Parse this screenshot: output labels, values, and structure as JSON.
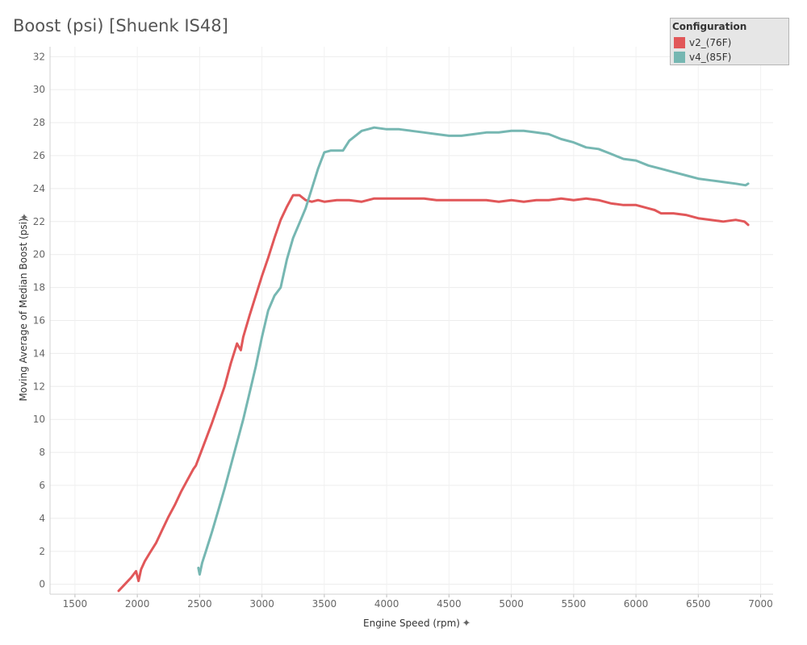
{
  "chart_data": {
    "type": "line",
    "title": "Boost (psi) [Shuenk IS48]",
    "xlabel": "Engine Speed (rpm)",
    "ylabel": "Moving Average of Median Boost (psi)",
    "xlim": [
      1300,
      7100
    ],
    "ylim": [
      -0.6,
      32.6
    ],
    "x_ticks": [
      1500,
      2000,
      2500,
      3000,
      3500,
      4000,
      4500,
      5000,
      5500,
      6000,
      6500,
      7000
    ],
    "y_ticks": [
      0,
      2,
      4,
      6,
      8,
      10,
      12,
      14,
      16,
      18,
      20,
      22,
      24,
      26,
      28,
      30,
      32
    ],
    "grid": true,
    "legend": {
      "title": "Configuration",
      "position": "top-right"
    },
    "series": [
      {
        "name": "v2_(76F)",
        "color": "#e15759",
        "x": [
          1850,
          1900,
          1950,
          1990,
          2010,
          2030,
          2060,
          2100,
          2150,
          2200,
          2250,
          2300,
          2350,
          2400,
          2450,
          2470,
          2500,
          2550,
          2600,
          2650,
          2700,
          2750,
          2800,
          2830,
          2850,
          2900,
          2950,
          3000,
          3050,
          3100,
          3150,
          3200,
          3250,
          3300,
          3350,
          3400,
          3450,
          3500,
          3600,
          3700,
          3800,
          3900,
          4000,
          4100,
          4200,
          4300,
          4400,
          4500,
          4600,
          4700,
          4800,
          4900,
          5000,
          5100,
          5200,
          5300,
          5400,
          5500,
          5600,
          5700,
          5800,
          5900,
          6000,
          6100,
          6150,
          6200,
          6300,
          6400,
          6500,
          6600,
          6700,
          6800,
          6870,
          6900
        ],
        "y": [
          -0.4,
          0.0,
          0.4,
          0.8,
          0.2,
          0.9,
          1.4,
          1.9,
          2.5,
          3.3,
          4.1,
          4.8,
          5.6,
          6.3,
          7.0,
          7.2,
          7.8,
          8.8,
          9.8,
          10.9,
          12.0,
          13.4,
          14.6,
          14.2,
          15.0,
          16.3,
          17.5,
          18.7,
          19.8,
          21.0,
          22.1,
          22.9,
          23.6,
          23.6,
          23.3,
          23.2,
          23.3,
          23.2,
          23.3,
          23.3,
          23.2,
          23.4,
          23.4,
          23.4,
          23.4,
          23.4,
          23.3,
          23.3,
          23.3,
          23.3,
          23.3,
          23.2,
          23.3,
          23.2,
          23.3,
          23.3,
          23.4,
          23.3,
          23.4,
          23.3,
          23.1,
          23.0,
          23.0,
          22.8,
          22.7,
          22.5,
          22.5,
          22.4,
          22.2,
          22.1,
          22.0,
          22.1,
          22.0,
          21.8
        ]
      },
      {
        "name": "v4_(85F)",
        "color": "#76b7b2",
        "x": [
          2490,
          2500,
          2520,
          2550,
          2600,
          2650,
          2700,
          2750,
          2800,
          2850,
          2900,
          2950,
          3000,
          3050,
          3100,
          3150,
          3200,
          3250,
          3300,
          3350,
          3400,
          3450,
          3500,
          3550,
          3600,
          3650,
          3700,
          3750,
          3800,
          3850,
          3900,
          4000,
          4100,
          4200,
          4300,
          4400,
          4500,
          4600,
          4700,
          4800,
          4900,
          5000,
          5100,
          5200,
          5300,
          5400,
          5500,
          5600,
          5700,
          5800,
          5900,
          6000,
          6100,
          6200,
          6300,
          6400,
          6500,
          6600,
          6700,
          6800,
          6880,
          6900
        ],
        "y": [
          1.0,
          0.6,
          1.3,
          2.0,
          3.2,
          4.5,
          5.8,
          7.2,
          8.6,
          10.0,
          11.6,
          13.2,
          15.0,
          16.6,
          17.5,
          18.0,
          19.7,
          21.0,
          21.9,
          22.8,
          24.0,
          25.2,
          26.2,
          26.3,
          26.3,
          26.3,
          26.9,
          27.2,
          27.5,
          27.6,
          27.7,
          27.6,
          27.6,
          27.5,
          27.4,
          27.3,
          27.2,
          27.2,
          27.3,
          27.4,
          27.4,
          27.5,
          27.5,
          27.4,
          27.3,
          27.0,
          26.8,
          26.5,
          26.4,
          26.1,
          25.8,
          25.7,
          25.4,
          25.2,
          25.0,
          24.8,
          24.6,
          24.5,
          24.4,
          24.3,
          24.2,
          24.3
        ]
      }
    ]
  }
}
